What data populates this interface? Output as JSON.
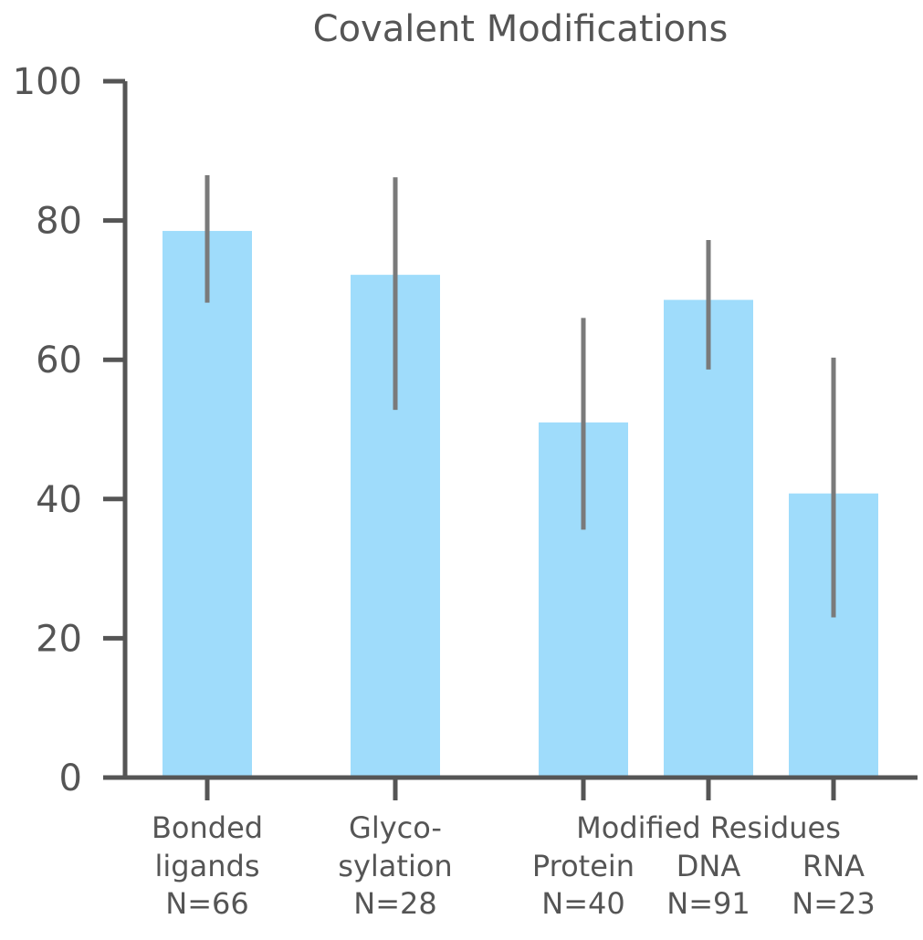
{
  "chart_data": {
    "type": "bar",
    "title": "Covalent Modifications",
    "xlabel": "",
    "ylabel": "",
    "ylim": [
      0,
      100
    ],
    "yticks": [
      0,
      20,
      40,
      60,
      80,
      100
    ],
    "group_label": "Modified Residues",
    "bar_color": "#9fdcfb",
    "error_color": "#7a7a7a",
    "axis_color": "#555555",
    "categories": [
      {
        "label_lines": [
          "Bonded",
          "ligands",
          "N=66"
        ],
        "value": 78.5,
        "err_low": 68.2,
        "err_high": 86.5
      },
      {
        "label_lines": [
          "Glyco-",
          "sylation",
          "N=28"
        ],
        "value": 72.2,
        "err_low": 52.8,
        "err_high": 86.2
      },
      {
        "label_lines": [
          "Protein",
          "N=40"
        ],
        "value": 51.0,
        "err_low": 35.6,
        "err_high": 66.0
      },
      {
        "label_lines": [
          "DNA",
          "N=91"
        ],
        "value": 68.6,
        "err_low": 58.6,
        "err_high": 77.2
      },
      {
        "label_lines": [
          "RNA",
          "N=23"
        ],
        "value": 40.8,
        "err_low": 23.0,
        "err_high": 60.3
      }
    ]
  }
}
